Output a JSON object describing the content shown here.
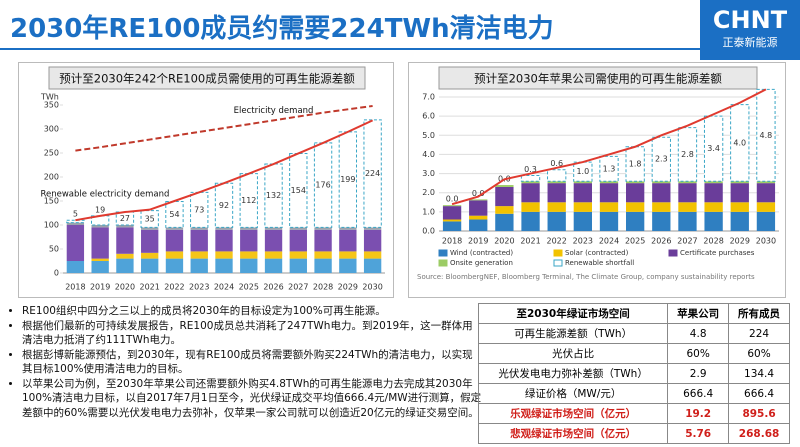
{
  "header": {
    "title": "2030年RE100成员约需要224TWh清洁电力",
    "logo": "CHNT",
    "logo_sub": "正泰新能源"
  },
  "chart_data": [
    {
      "type": "bar",
      "title": "预计至2030年242个RE100成员需使用的可再生能源差额",
      "ylabel": "TWh",
      "categories": [
        "2018",
        "2019",
        "2020",
        "2021",
        "2022",
        "2023",
        "2024",
        "2025",
        "2026",
        "2027",
        "2028",
        "2029",
        "2030"
      ],
      "ylim": [
        0,
        350
      ],
      "yticks": [
        0,
        50,
        100,
        150,
        200,
        250,
        300,
        350
      ],
      "grid": false,
      "series": [
        {
          "type": "bar",
          "color": "#4fa3d9",
          "values": [
            25,
            25,
            30,
            30,
            30,
            30,
            30,
            30,
            30,
            30,
            30,
            30,
            30
          ]
        },
        {
          "type": "bar",
          "color": "#f5c518",
          "values": [
            0,
            5,
            10,
            12,
            15,
            15,
            15,
            15,
            15,
            15,
            15,
            15,
            15
          ]
        },
        {
          "type": "bar",
          "color": "#7b4fb0",
          "values": [
            75,
            65,
            55,
            48,
            45,
            45,
            45,
            45,
            45,
            45,
            45,
            45,
            45
          ]
        },
        {
          "type": "bar",
          "color": "#9aa3ad",
          "values": [
            5,
            5,
            5,
            5,
            5,
            5,
            5,
            5,
            5,
            5,
            5,
            5,
            5
          ]
        },
        {
          "type": "bar",
          "style": "dashed",
          "color": "#3aa6c6",
          "values": [
            5,
            19,
            27,
            35,
            54,
            73,
            92,
            112,
            132,
            154,
            176,
            199,
            224
          ]
        },
        {
          "type": "line",
          "style": "dashed",
          "name": "Electricity demand",
          "color": "#c0392b",
          "values": [
            255,
            262,
            270,
            278,
            286,
            294,
            302,
            310,
            318,
            326,
            334,
            341,
            348
          ]
        },
        {
          "type": "line",
          "name": "Renewable electricity demand",
          "color": "#e03a2f",
          "values": [
            110,
            119,
            127,
            132,
            150,
            168,
            187,
            207,
            227,
            249,
            271,
            294,
            318
          ]
        }
      ]
    },
    {
      "type": "bar",
      "title": "预计至2030年苹果公司需使用的可再生能源差额",
      "categories": [
        "2018",
        "2019",
        "2020",
        "2021",
        "2022",
        "2023",
        "2024",
        "2025",
        "2026",
        "2027",
        "2028",
        "2029",
        "2030"
      ],
      "ylim": [
        0,
        7
      ],
      "yticks": [
        {
          "value": 0,
          "label": "0.0"
        },
        {
          "value": 1,
          "label": "1.0"
        },
        {
          "value": 2,
          "label": "2.0"
        },
        {
          "value": 3,
          "label": "3.0"
        },
        {
          "value": 4,
          "label": "4.0"
        },
        {
          "value": 5,
          "label": "5.0"
        },
        {
          "value": 6,
          "label": "6.0"
        },
        {
          "value": 7,
          "label": "7.0"
        }
      ],
      "grid": true,
      "series": [
        {
          "type": "bar",
          "name": "Wind (contracted)",
          "color": "#2f7fc1",
          "values": [
            0.5,
            0.6,
            0.9,
            1.0,
            1.0,
            1.0,
            1.0,
            1.0,
            1.0,
            1.0,
            1.0,
            1.0,
            1.0
          ]
        },
        {
          "type": "bar",
          "name": "Solar (contracted)",
          "color": "#f2c200",
          "values": [
            0.1,
            0.2,
            0.4,
            0.5,
            0.5,
            0.5,
            0.5,
            0.5,
            0.5,
            0.5,
            0.5,
            0.5,
            0.5
          ]
        },
        {
          "type": "bar",
          "name": "Certificate purchases",
          "color": "#6a3d9a",
          "values": [
            0.7,
            0.8,
            1.0,
            1.0,
            1.0,
            1.0,
            1.0,
            1.0,
            1.0,
            1.0,
            1.0,
            1.0,
            1.0
          ]
        },
        {
          "type": "bar",
          "name": "Onsite generation",
          "color": "#9ccc65",
          "values": [
            0.05,
            0.05,
            0.1,
            0.1,
            0.1,
            0.1,
            0.1,
            0.1,
            0.1,
            0.1,
            0.1,
            0.1,
            0.1
          ]
        },
        {
          "type": "bar",
          "style": "dashed",
          "name": "Renewable shortfall",
          "color": "#3aa6c6",
          "values": [
            0,
            0,
            0,
            0.3,
            0.6,
            1.0,
            1.3,
            1.8,
            2.3,
            2.8,
            3.4,
            4.0,
            4.8
          ],
          "value_labels": [
            "0.0",
            "0.0",
            "0.0",
            "0.3",
            "0.6",
            "1.0",
            "1.3",
            "1.8",
            "2.3",
            "2.8",
            "3.4",
            "4.0",
            "4.8"
          ]
        },
        {
          "type": "line",
          "color": "#e03a2f",
          "values": [
            1.4,
            1.8,
            2.7,
            3.0,
            3.3,
            3.6,
            4.0,
            4.4,
            5.0,
            5.5,
            6.1,
            6.7,
            7.4
          ]
        }
      ],
      "source": "Source: BloombergNEF, Bloomberg Terminal, The Climate Group, company sustainability reports"
    }
  ],
  "bullets": [
    "RE100组织中四分之三以上的成员将2030年的目标设定为100%可再生能源。",
    "根据他们最新的可持续发展报告，RE100成员总共消耗了247TWh电力。到2019年，这一群体用清洁电力抵消了约111TWh电力。",
    "根据彭博新能源预估，到2030年，现有RE100成员将需要额外购买224TWh的清洁电力，以实现其目标100%使用清洁电力的目标。",
    "以苹果公司为例，至2030年苹果公司还需要额外购买4.8TWh的可再生能源电力去完成其2030年100%清洁电力目标，以自2017年7月1日至今，光伏绿证成交平均值666.4元/MW进行测算，假定差额中的60%需要以光伏发电电力去弥补，仅苹果一家公司就可以创造近20亿元的绿证交易空间。"
  ],
  "table": {
    "header": [
      "至2030年绿证市场空间",
      "苹果公司",
      "所有成员"
    ],
    "rows": [
      [
        "可再生能源差额（TWh）",
        "4.8",
        "224"
      ],
      [
        "光伏占比",
        "60%",
        "60%"
      ],
      [
        "光伏发电电力弥补差额（TWh）",
        "2.9",
        "134.4"
      ],
      [
        "绿证价格（MW/元）",
        "666.4",
        "666.4"
      ],
      [
        "乐观绿证市场空间（亿元）",
        "19.2",
        "895.6"
      ],
      [
        "悲观绿证市场空间（亿元）",
        "5.76",
        "268.68"
      ]
    ]
  }
}
